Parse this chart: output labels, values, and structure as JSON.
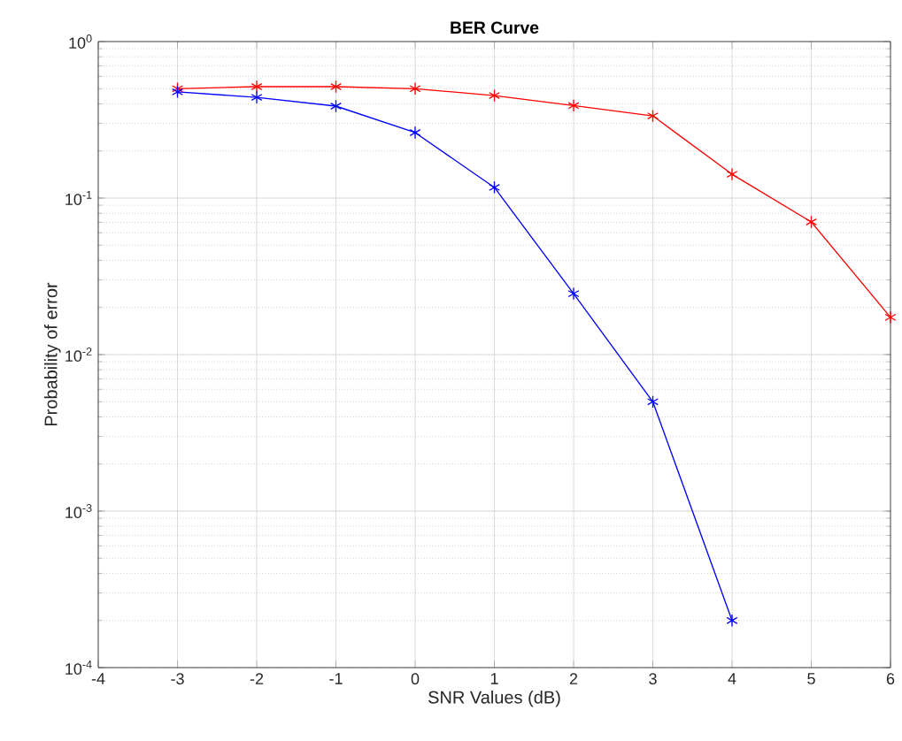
{
  "chart_data": {
    "type": "line",
    "title": "BER Curve",
    "xlabel": "SNR Values (dB)",
    "ylabel": "Probability of error",
    "x": [
      -3,
      -2,
      -1,
      0,
      1,
      2,
      3,
      4,
      5,
      6
    ],
    "series": [
      {
        "color": "#ff0000",
        "values": [
          0.5,
          0.515,
          0.515,
          0.5,
          0.452,
          0.39,
          0.335,
          0.142,
          0.0704,
          0.0173
        ]
      },
      {
        "color": "#0000ff",
        "values": [
          0.477,
          0.44,
          0.387,
          0.262,
          0.117,
          0.0245,
          0.005,
          0.0002,
          null,
          null
        ]
      }
    ],
    "xlim": [
      -4,
      6
    ],
    "xticks": [
      -4,
      -3,
      -2,
      -1,
      0,
      1,
      2,
      3,
      4,
      5,
      6
    ],
    "ylim": [
      0.0001,
      1
    ],
    "yticks": [
      {
        "value": 0.0001,
        "label": "10$^{-4}$"
      },
      {
        "value": 0.001,
        "label": "10$^{-3}$"
      },
      {
        "value": 0.01,
        "label": "10$^{-2}$"
      },
      {
        "value": 0.1,
        "label": "10$^{-1}$"
      },
      {
        "value": 1,
        "label": "10$^{0}$"
      }
    ],
    "log": "y",
    "grid": true,
    "marker": "cross",
    "line_style": "solid"
  }
}
